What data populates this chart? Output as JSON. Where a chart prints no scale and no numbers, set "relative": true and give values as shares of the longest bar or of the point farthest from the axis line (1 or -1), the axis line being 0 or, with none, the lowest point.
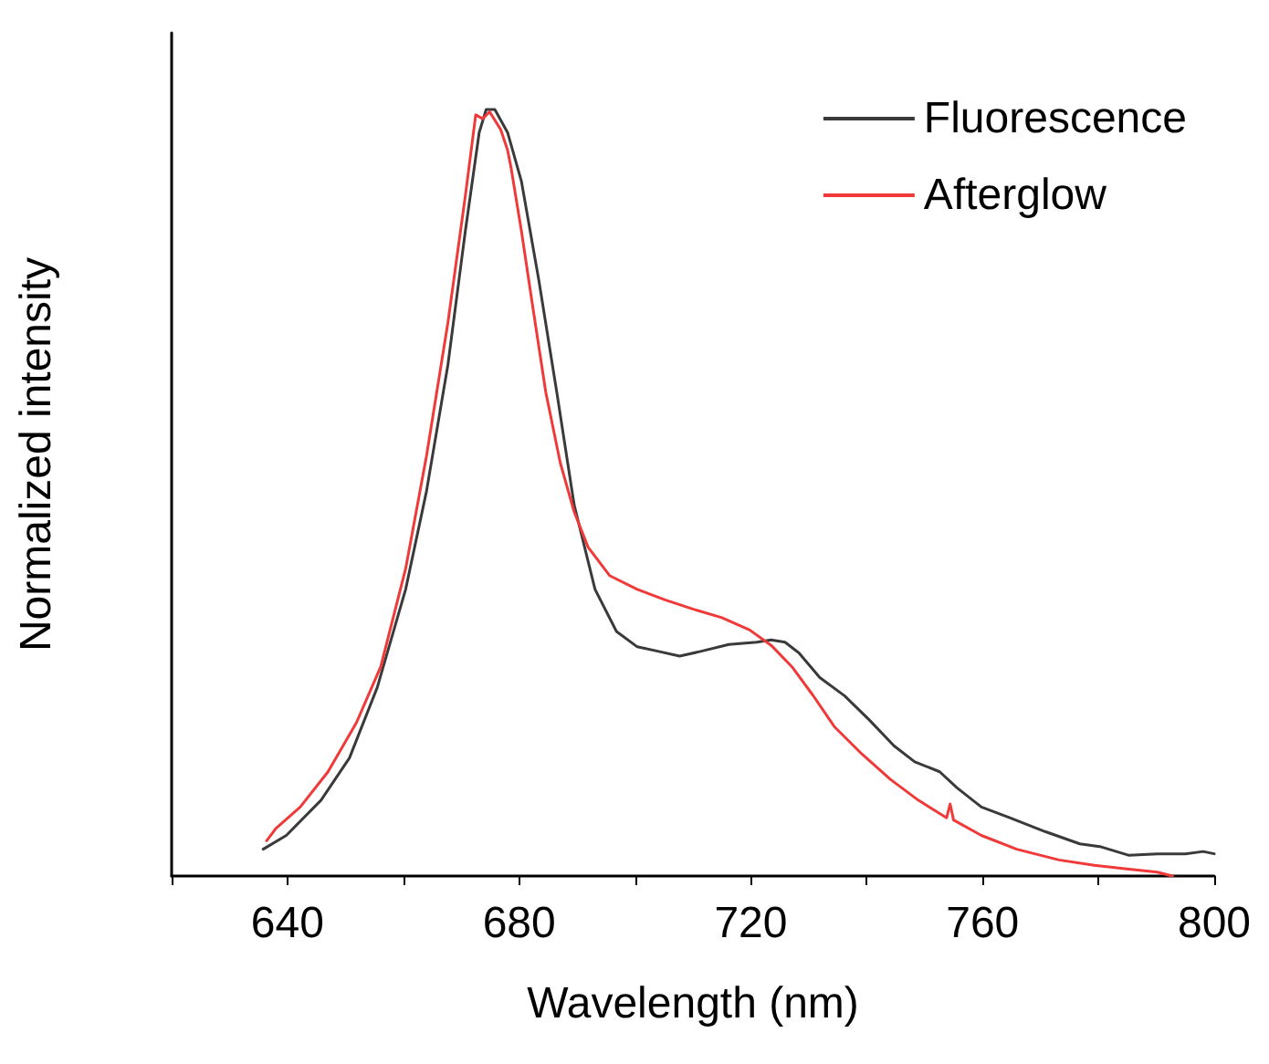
{
  "chart_data": {
    "type": "line",
    "xlabel": "Wavelength (nm)",
    "ylabel": "Normalized intensity",
    "relative": true,
    "xlim": [
      620,
      800
    ],
    "xticks": [
      640,
      680,
      720,
      760,
      800
    ],
    "tick_labels": "x",
    "legend": "top right",
    "grid": false,
    "marker": "none",
    "line_style": "solid",
    "series": [
      {
        "name": "Fluorescence",
        "color": "#3a3a3a",
        "x": [
          635.8,
          639.8,
          645.8,
          650.7,
          655.5,
          660.4,
          664.0,
          667.7,
          670.7,
          673.1,
          674.3,
          675.8,
          678.0,
          680.4,
          683.4,
          686.5,
          689.5,
          693.1,
          696.8,
          700.4,
          704.1,
          707.7,
          711.3,
          716.2,
          721.0,
          723.5,
          725.9,
          728.3,
          731.9,
          736.2,
          740.4,
          744.7,
          748.3,
          752.6,
          755.6,
          759.8,
          764.7,
          770.8,
          776.8,
          780.5,
          785.3,
          790.2,
          795.0,
          798.1,
          800
        ],
        "values": [
          0.035,
          0.053,
          0.099,
          0.154,
          0.246,
          0.374,
          0.502,
          0.667,
          0.841,
          0.97,
          1.0,
          1.0,
          0.97,
          0.906,
          0.777,
          0.631,
          0.484,
          0.374,
          0.319,
          0.299,
          0.293,
          0.287,
          0.293,
          0.302,
          0.305,
          0.308,
          0.305,
          0.291,
          0.259,
          0.235,
          0.204,
          0.17,
          0.149,
          0.136,
          0.115,
          0.09,
          0.076,
          0.058,
          0.042,
          0.038,
          0.027,
          0.029,
          0.029,
          0.032,
          0.029
        ]
      },
      {
        "name": "Afterglow",
        "color": "#f03a3a",
        "x": [
          636.4,
          638.0,
          642.2,
          647.0,
          651.9,
          656.1,
          660.4,
          664.0,
          667.7,
          670.7,
          672.5,
          673.7,
          674.9,
          676.8,
          678.0,
          678.6,
          680.4,
          682.2,
          684.6,
          687.1,
          689.5,
          691.9,
          695.6,
          700.4,
          705.3,
          710.1,
          715.0,
          719.8,
          723.5,
          727.1,
          730.7,
          734.4,
          739.2,
          744.1,
          748.9,
          753.8,
          754.4,
          755.0,
          759.8,
          765.9,
          773.2,
          779.3,
          785.3,
          790.2,
          792.8
        ],
        "values": [
          0.046,
          0.062,
          0.09,
          0.136,
          0.2,
          0.273,
          0.401,
          0.548,
          0.722,
          0.887,
          0.993,
          0.988,
          0.997,
          0.974,
          0.947,
          0.924,
          0.841,
          0.75,
          0.631,
          0.539,
          0.475,
          0.429,
          0.392,
          0.374,
          0.36,
          0.348,
          0.337,
          0.321,
          0.301,
          0.273,
          0.236,
          0.195,
          0.159,
          0.126,
          0.099,
          0.076,
          0.094,
          0.073,
          0.053,
          0.035,
          0.021,
          0.014,
          0.009,
          0.005,
          0
        ]
      }
    ]
  }
}
